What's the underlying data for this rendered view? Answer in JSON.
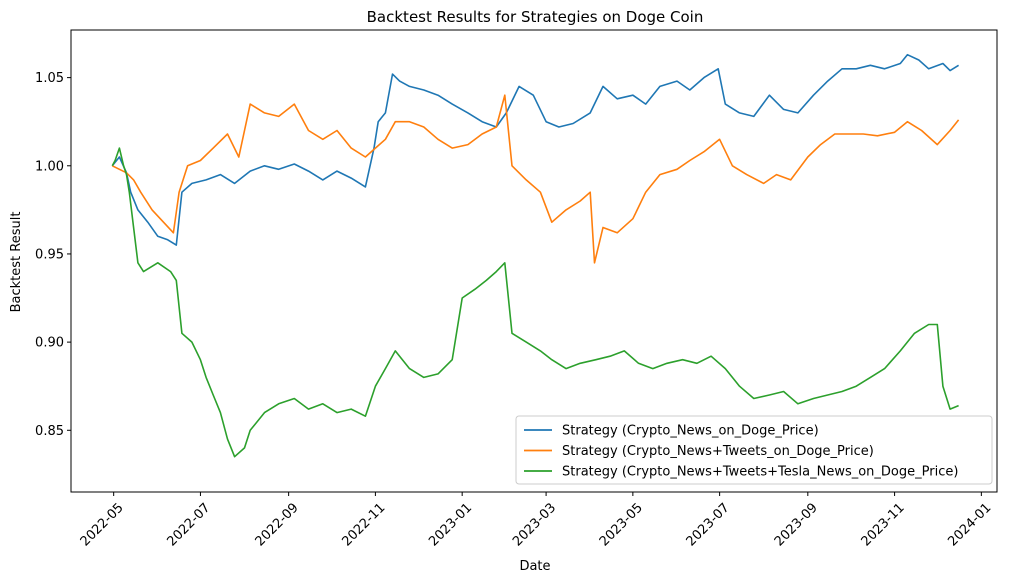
{
  "chart_data": {
    "type": "line",
    "title": "Backtest Results for Strategies on Doge Coin",
    "xlabel": "Date",
    "ylabel": "Backtest Result",
    "xlim": [
      "2022-04-01",
      "2024-01-12"
    ],
    "ylim": [
      0.815,
      1.077
    ],
    "grid": false,
    "legend_position": "bottom-right",
    "x_ticks": [
      "2022-05",
      "2022-07",
      "2022-09",
      "2022-11",
      "2023-01",
      "2023-03",
      "2023-05",
      "2023-07",
      "2023-09",
      "2023-11",
      "2024-01"
    ],
    "y_ticks": [
      "0.85",
      "0.90",
      "0.95",
      "1.00",
      "1.05"
    ],
    "series": [
      {
        "name": "Strategy (Crypto_News_on_Doge_Price)",
        "color": "#1f77b4",
        "x": [
          "2022-04-30",
          "2022-05-05",
          "2022-05-10",
          "2022-05-13",
          "2022-05-18",
          "2022-05-25",
          "2022-06-01",
          "2022-06-08",
          "2022-06-14",
          "2022-06-18",
          "2022-06-25",
          "2022-07-05",
          "2022-07-15",
          "2022-07-25",
          "2022-08-05",
          "2022-08-15",
          "2022-08-25",
          "2022-09-05",
          "2022-09-15",
          "2022-09-25",
          "2022-10-05",
          "2022-10-15",
          "2022-10-25",
          "2022-10-31",
          "2022-11-03",
          "2022-11-08",
          "2022-11-13",
          "2022-11-18",
          "2022-11-25",
          "2022-12-05",
          "2022-12-15",
          "2022-12-25",
          "2023-01-05",
          "2023-01-15",
          "2023-01-25",
          "2023-02-01",
          "2023-02-10",
          "2023-02-20",
          "2023-03-01",
          "2023-03-10",
          "2023-03-20",
          "2023-04-01",
          "2023-04-10",
          "2023-04-20",
          "2023-05-01",
          "2023-05-10",
          "2023-05-20",
          "2023-06-01",
          "2023-06-10",
          "2023-06-20",
          "2023-06-30",
          "2023-07-05",
          "2023-07-15",
          "2023-07-25",
          "2023-08-05",
          "2023-08-15",
          "2023-08-25",
          "2023-09-05",
          "2023-09-15",
          "2023-09-25",
          "2023-10-05",
          "2023-10-15",
          "2023-10-25",
          "2023-11-05",
          "2023-11-10",
          "2023-11-18",
          "2023-11-25",
          "2023-12-05",
          "2023-12-10",
          "2023-12-16"
        ],
        "values": [
          1.0,
          1.005,
          0.996,
          0.985,
          0.975,
          0.968,
          0.96,
          0.958,
          0.955,
          0.985,
          0.99,
          0.992,
          0.995,
          0.99,
          0.997,
          1.0,
          0.998,
          1.001,
          0.997,
          0.992,
          0.997,
          0.993,
          0.988,
          1.01,
          1.025,
          1.03,
          1.052,
          1.048,
          1.045,
          1.043,
          1.04,
          1.035,
          1.03,
          1.025,
          1.022,
          1.03,
          1.045,
          1.04,
          1.025,
          1.022,
          1.024,
          1.03,
          1.045,
          1.038,
          1.04,
          1.035,
          1.045,
          1.048,
          1.043,
          1.05,
          1.055,
          1.035,
          1.03,
          1.028,
          1.04,
          1.032,
          1.03,
          1.04,
          1.048,
          1.055,
          1.055,
          1.057,
          1.055,
          1.058,
          1.063,
          1.06,
          1.055,
          1.058,
          1.054,
          1.057
        ]
      },
      {
        "name": "Strategy (Crypto_News+Tweets_on_Doge_Price)",
        "color": "#ff7f0e",
        "x": [
          "2022-04-30",
          "2022-05-05",
          "2022-05-10",
          "2022-05-15",
          "2022-05-20",
          "2022-05-28",
          "2022-06-05",
          "2022-06-12",
          "2022-06-16",
          "2022-06-22",
          "2022-07-01",
          "2022-07-10",
          "2022-07-20",
          "2022-07-28",
          "2022-08-05",
          "2022-08-15",
          "2022-08-25",
          "2022-09-05",
          "2022-09-15",
          "2022-09-25",
          "2022-10-05",
          "2022-10-15",
          "2022-10-25",
          "2022-11-01",
          "2022-11-08",
          "2022-11-15",
          "2022-11-25",
          "2022-12-05",
          "2022-12-15",
          "2022-12-25",
          "2023-01-05",
          "2023-01-15",
          "2023-01-25",
          "2023-01-31",
          "2023-02-05",
          "2023-02-15",
          "2023-02-25",
          "2023-03-05",
          "2023-03-15",
          "2023-03-25",
          "2023-04-01",
          "2023-04-04",
          "2023-04-10",
          "2023-04-20",
          "2023-05-01",
          "2023-05-10",
          "2023-05-20",
          "2023-06-01",
          "2023-06-10",
          "2023-06-20",
          "2023-07-01",
          "2023-07-10",
          "2023-07-20",
          "2023-08-01",
          "2023-08-10",
          "2023-08-20",
          "2023-09-01",
          "2023-09-10",
          "2023-09-20",
          "2023-10-01",
          "2023-10-10",
          "2023-10-20",
          "2023-11-01",
          "2023-11-10",
          "2023-11-20",
          "2023-12-01",
          "2023-12-10",
          "2023-12-16"
        ],
        "values": [
          1.0,
          0.998,
          0.996,
          0.992,
          0.985,
          0.975,
          0.968,
          0.962,
          0.985,
          1.0,
          1.003,
          1.01,
          1.018,
          1.005,
          1.035,
          1.03,
          1.028,
          1.035,
          1.02,
          1.015,
          1.02,
          1.01,
          1.005,
          1.01,
          1.015,
          1.025,
          1.025,
          1.022,
          1.015,
          1.01,
          1.012,
          1.018,
          1.022,
          1.04,
          1.0,
          0.992,
          0.985,
          0.968,
          0.975,
          0.98,
          0.985,
          0.945,
          0.965,
          0.962,
          0.97,
          0.985,
          0.995,
          0.998,
          1.003,
          1.008,
          1.015,
          1.0,
          0.995,
          0.99,
          0.995,
          0.992,
          1.005,
          1.012,
          1.018,
          1.018,
          1.018,
          1.017,
          1.019,
          1.025,
          1.02,
          1.012,
          1.02,
          1.026
        ]
      },
      {
        "name": "Strategy (Crypto_News+Tweets+Tesla_News_on_Doge_Price)",
        "color": "#2ca02c",
        "x": [
          "2022-04-30",
          "2022-05-02",
          "2022-05-05",
          "2022-05-08",
          "2022-05-10",
          "2022-05-12",
          "2022-05-15",
          "2022-05-18",
          "2022-05-22",
          "2022-06-01",
          "2022-06-10",
          "2022-06-14",
          "2022-06-18",
          "2022-06-25",
          "2022-07-01",
          "2022-07-05",
          "2022-07-10",
          "2022-07-15",
          "2022-07-20",
          "2022-07-25",
          "2022-08-01",
          "2022-08-05",
          "2022-08-15",
          "2022-08-25",
          "2022-09-05",
          "2022-09-15",
          "2022-09-25",
          "2022-10-05",
          "2022-10-15",
          "2022-10-25",
          "2022-11-01",
          "2022-11-08",
          "2022-11-15",
          "2022-11-25",
          "2022-12-05",
          "2022-12-15",
          "2022-12-25",
          "2023-01-01",
          "2023-01-10",
          "2023-01-18",
          "2023-01-25",
          "2023-01-31",
          "2023-02-05",
          "2023-02-15",
          "2023-02-25",
          "2023-03-05",
          "2023-03-15",
          "2023-03-25",
          "2023-04-05",
          "2023-04-15",
          "2023-04-25",
          "2023-05-05",
          "2023-05-15",
          "2023-05-25",
          "2023-06-05",
          "2023-06-15",
          "2023-06-25",
          "2023-07-05",
          "2023-07-15",
          "2023-07-25",
          "2023-08-05",
          "2023-08-15",
          "2023-08-25",
          "2023-09-05",
          "2023-09-15",
          "2023-09-25",
          "2023-10-05",
          "2023-10-15",
          "2023-10-25",
          "2023-11-05",
          "2023-11-15",
          "2023-11-25",
          "2023-12-01",
          "2023-12-05",
          "2023-12-10",
          "2023-12-16"
        ],
        "values": [
          1.0,
          1.003,
          1.01,
          1.0,
          0.995,
          0.985,
          0.965,
          0.945,
          0.94,
          0.945,
          0.94,
          0.935,
          0.905,
          0.9,
          0.89,
          0.88,
          0.87,
          0.86,
          0.845,
          0.835,
          0.84,
          0.85,
          0.86,
          0.865,
          0.868,
          0.862,
          0.865,
          0.86,
          0.862,
          0.858,
          0.875,
          0.885,
          0.895,
          0.885,
          0.88,
          0.882,
          0.89,
          0.925,
          0.93,
          0.935,
          0.94,
          0.945,
          0.905,
          0.9,
          0.895,
          0.89,
          0.885,
          0.888,
          0.89,
          0.892,
          0.895,
          0.888,
          0.885,
          0.888,
          0.89,
          0.888,
          0.892,
          0.885,
          0.875,
          0.868,
          0.87,
          0.872,
          0.865,
          0.868,
          0.87,
          0.872,
          0.875,
          0.88,
          0.885,
          0.895,
          0.905,
          0.91,
          0.91,
          0.875,
          0.862,
          0.864
        ]
      }
    ]
  }
}
